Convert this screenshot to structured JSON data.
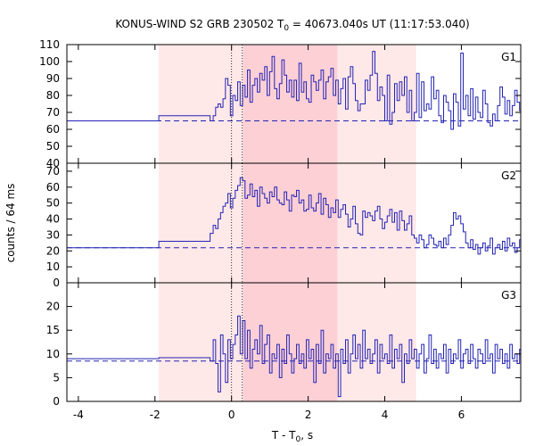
{
  "chart_data": {
    "type": "line",
    "title": {
      "prefix": "KONUS-WIND S2 GRB 230502 T",
      "sub": "0",
      "suffix": " = 40673.040s UT (11:17:53.040)"
    },
    "xlabel": {
      "prefix": "T - T",
      "sub": "0",
      "suffix": ", s"
    },
    "ylabel": "counts / 64 ms",
    "xlim": [
      -4.3,
      7.55
    ],
    "x_ticks": [
      -4,
      -2,
      0,
      2,
      4,
      6
    ],
    "x_tick_labels": [
      "-4",
      "-2",
      "0",
      "2",
      "4",
      "6"
    ],
    "shaded_regions": [
      {
        "x": [
          -1.9,
          4.82
        ],
        "color": "#ffe8e8"
      },
      {
        "x": [
          0.3,
          2.76
        ],
        "color": "#fdd0d6"
      }
    ],
    "vlines_dotted": [
      0,
      0.28
    ],
    "colors": {
      "series": "#2323b4"
    },
    "panels": [
      {
        "name": "G1",
        "ylim": [
          40,
          110
        ],
        "y_ticks": [
          40,
          50,
          60,
          70,
          80,
          90,
          100,
          110
        ],
        "y_tick_labels": [
          "40",
          "50",
          "60",
          "70",
          "80",
          "90",
          "100",
          "110"
        ],
        "background": 65,
        "pre_steps": [
          {
            "x0": -4.3,
            "x1": -1.9,
            "y": 65
          },
          {
            "x0": -1.9,
            "x1": -0.56,
            "y": 68
          },
          {
            "x0": -0.56,
            "x1": -0.48,
            "y": 65
          }
        ],
        "bin_start": -0.48,
        "bin_width": 0.064,
        "values": [
          68,
          73,
          75,
          73,
          78,
          90,
          86,
          68,
          80,
          77,
          88,
          74,
          86,
          79,
          95,
          76,
          86,
          90,
          82,
          93,
          89,
          97,
          80,
          94,
          103,
          84,
          78,
          87,
          101,
          92,
          82,
          89,
          79,
          89,
          77,
          99,
          82,
          88,
          78,
          76,
          92,
          88,
          83,
          89,
          95,
          78,
          88,
          91,
          96,
          80,
          89,
          75,
          84,
          90,
          72,
          91,
          97,
          87,
          77,
          71,
          75,
          75,
          89,
          83,
          92,
          106,
          93,
          77,
          85,
          80,
          65,
          92,
          63,
          70,
          87,
          77,
          88,
          80,
          91,
          70,
          83,
          65,
          70,
          93,
          67,
          88,
          71,
          75,
          72,
          91,
          78,
          83,
          68,
          64,
          80,
          76,
          71,
          60,
          81,
          76,
          62,
          105,
          72,
          80,
          68,
          84,
          66,
          79,
          70,
          67,
          83,
          75,
          64,
          62,
          69,
          65,
          74,
          85,
          79,
          69,
          77,
          68,
          74,
          83,
          76,
          71,
          69,
          75,
          80,
          78,
          71,
          74,
          79,
          62,
          70,
          66,
          77,
          72,
          68,
          75,
          76,
          78,
          70,
          51,
          81,
          65,
          63,
          73,
          69,
          66,
          78,
          66,
          75,
          61,
          70,
          72,
          65,
          72,
          58,
          69,
          71,
          63,
          77,
          74,
          72,
          68,
          67,
          62,
          69,
          74,
          80,
          68,
          63,
          56,
          75,
          86,
          70,
          61
        ]
      },
      {
        "name": "G2",
        "ylim": [
          0,
          75
        ],
        "y_ticks": [
          0,
          10,
          20,
          30,
          40,
          50,
          60,
          70
        ],
        "y_tick_labels": [
          "0",
          "10",
          "20",
          "30",
          "40",
          "50",
          "60",
          "70"
        ],
        "background": 22,
        "pre_steps": [
          {
            "x0": -4.3,
            "x1": -1.9,
            "y": 22
          },
          {
            "x0": -1.9,
            "x1": -0.56,
            "y": 26
          },
          {
            "x0": -0.56,
            "x1": -0.48,
            "y": 31
          }
        ],
        "bin_start": -0.48,
        "bin_width": 0.064,
        "values": [
          36,
          34,
          40,
          44,
          48,
          50,
          56,
          47,
          53,
          58,
          61,
          66,
          64,
          53,
          55,
          62,
          54,
          58,
          48,
          60,
          56,
          53,
          50,
          57,
          54,
          60,
          52,
          50,
          49,
          57,
          52,
          45,
          55,
          54,
          58,
          50,
          52,
          45,
          46,
          55,
          47,
          45,
          50,
          56,
          43,
          53,
          49,
          41,
          47,
          44,
          52,
          41,
          46,
          49,
          43,
          35,
          40,
          48,
          37,
          31,
          30,
          45,
          41,
          44,
          42,
          39,
          45,
          48,
          40,
          34,
          38,
          42,
          46,
          38,
          44,
          33,
          45,
          39,
          33,
          37,
          42,
          30,
          28,
          25,
          30,
          27,
          22,
          24,
          30,
          28,
          24,
          23,
          26,
          22,
          28,
          24,
          30,
          36,
          44,
          40,
          42,
          37,
          32,
          25,
          22,
          27,
          21,
          24,
          18,
          22,
          25,
          20,
          23,
          28,
          18,
          22,
          24,
          21,
          26,
          20,
          28,
          23,
          25,
          19,
          22,
          27,
          21,
          24,
          18,
          24,
          23,
          20,
          25,
          21,
          27,
          18,
          26,
          20,
          24,
          22,
          18,
          25,
          20,
          23,
          22,
          19,
          25,
          20,
          24,
          21,
          16,
          26,
          22,
          27,
          23,
          19,
          25,
          24,
          20,
          22,
          21,
          18,
          25,
          23,
          20,
          27,
          22,
          19,
          26,
          24
        ]
      },
      {
        "name": "G3",
        "ylim": [
          0,
          25
        ],
        "y_ticks": [
          0,
          5,
          10,
          15,
          20
        ],
        "y_tick_labels": [
          "0",
          "5",
          "10",
          "15",
          "20"
        ],
        "background": 8.5,
        "pre_steps": [
          {
            "x0": -4.3,
            "x1": -1.9,
            "y": 9
          },
          {
            "x0": -1.9,
            "x1": -0.56,
            "y": 9.2
          },
          {
            "x0": -0.56,
            "x1": -0.48,
            "y": 8.5
          }
        ],
        "bin_start": -0.48,
        "bin_width": 0.064,
        "values": [
          13,
          8,
          2,
          14,
          10,
          4,
          13,
          9,
          12,
          14,
          18,
          10,
          17,
          9,
          15,
          7,
          11,
          13,
          10,
          16,
          8,
          12,
          14,
          6,
          10,
          9,
          12,
          5,
          11,
          8,
          14,
          10,
          6,
          9,
          12,
          8,
          10,
          7,
          13,
          9,
          11,
          4,
          12,
          8,
          15,
          6,
          10,
          9,
          12,
          7,
          10,
          1,
          11,
          8,
          13,
          6,
          10,
          14,
          9,
          12,
          7,
          15,
          9,
          11,
          8,
          10,
          13,
          6,
          12,
          9,
          10,
          8,
          14,
          7,
          11,
          9,
          12,
          4,
          10,
          8,
          13,
          9,
          11,
          7,
          10,
          12,
          6,
          9,
          14,
          8,
          11,
          7,
          10,
          9,
          12,
          6,
          11,
          8,
          10,
          9,
          13,
          7,
          10,
          11,
          8,
          12,
          9,
          7,
          11,
          10,
          8,
          13,
          9,
          10,
          6,
          12,
          9,
          11,
          8,
          10,
          7,
          12,
          9,
          10,
          8,
          11,
          6,
          13,
          9,
          10,
          8,
          12,
          9,
          7,
          11,
          10,
          5,
          12,
          3,
          9,
          11,
          8,
          10,
          12,
          7,
          9,
          11,
          8,
          10,
          6,
          12,
          9,
          10,
          8,
          11,
          9,
          10,
          7,
          12,
          8,
          10,
          9,
          11,
          8,
          10,
          12,
          9,
          7,
          11,
          10
        ]
      }
    ]
  }
}
